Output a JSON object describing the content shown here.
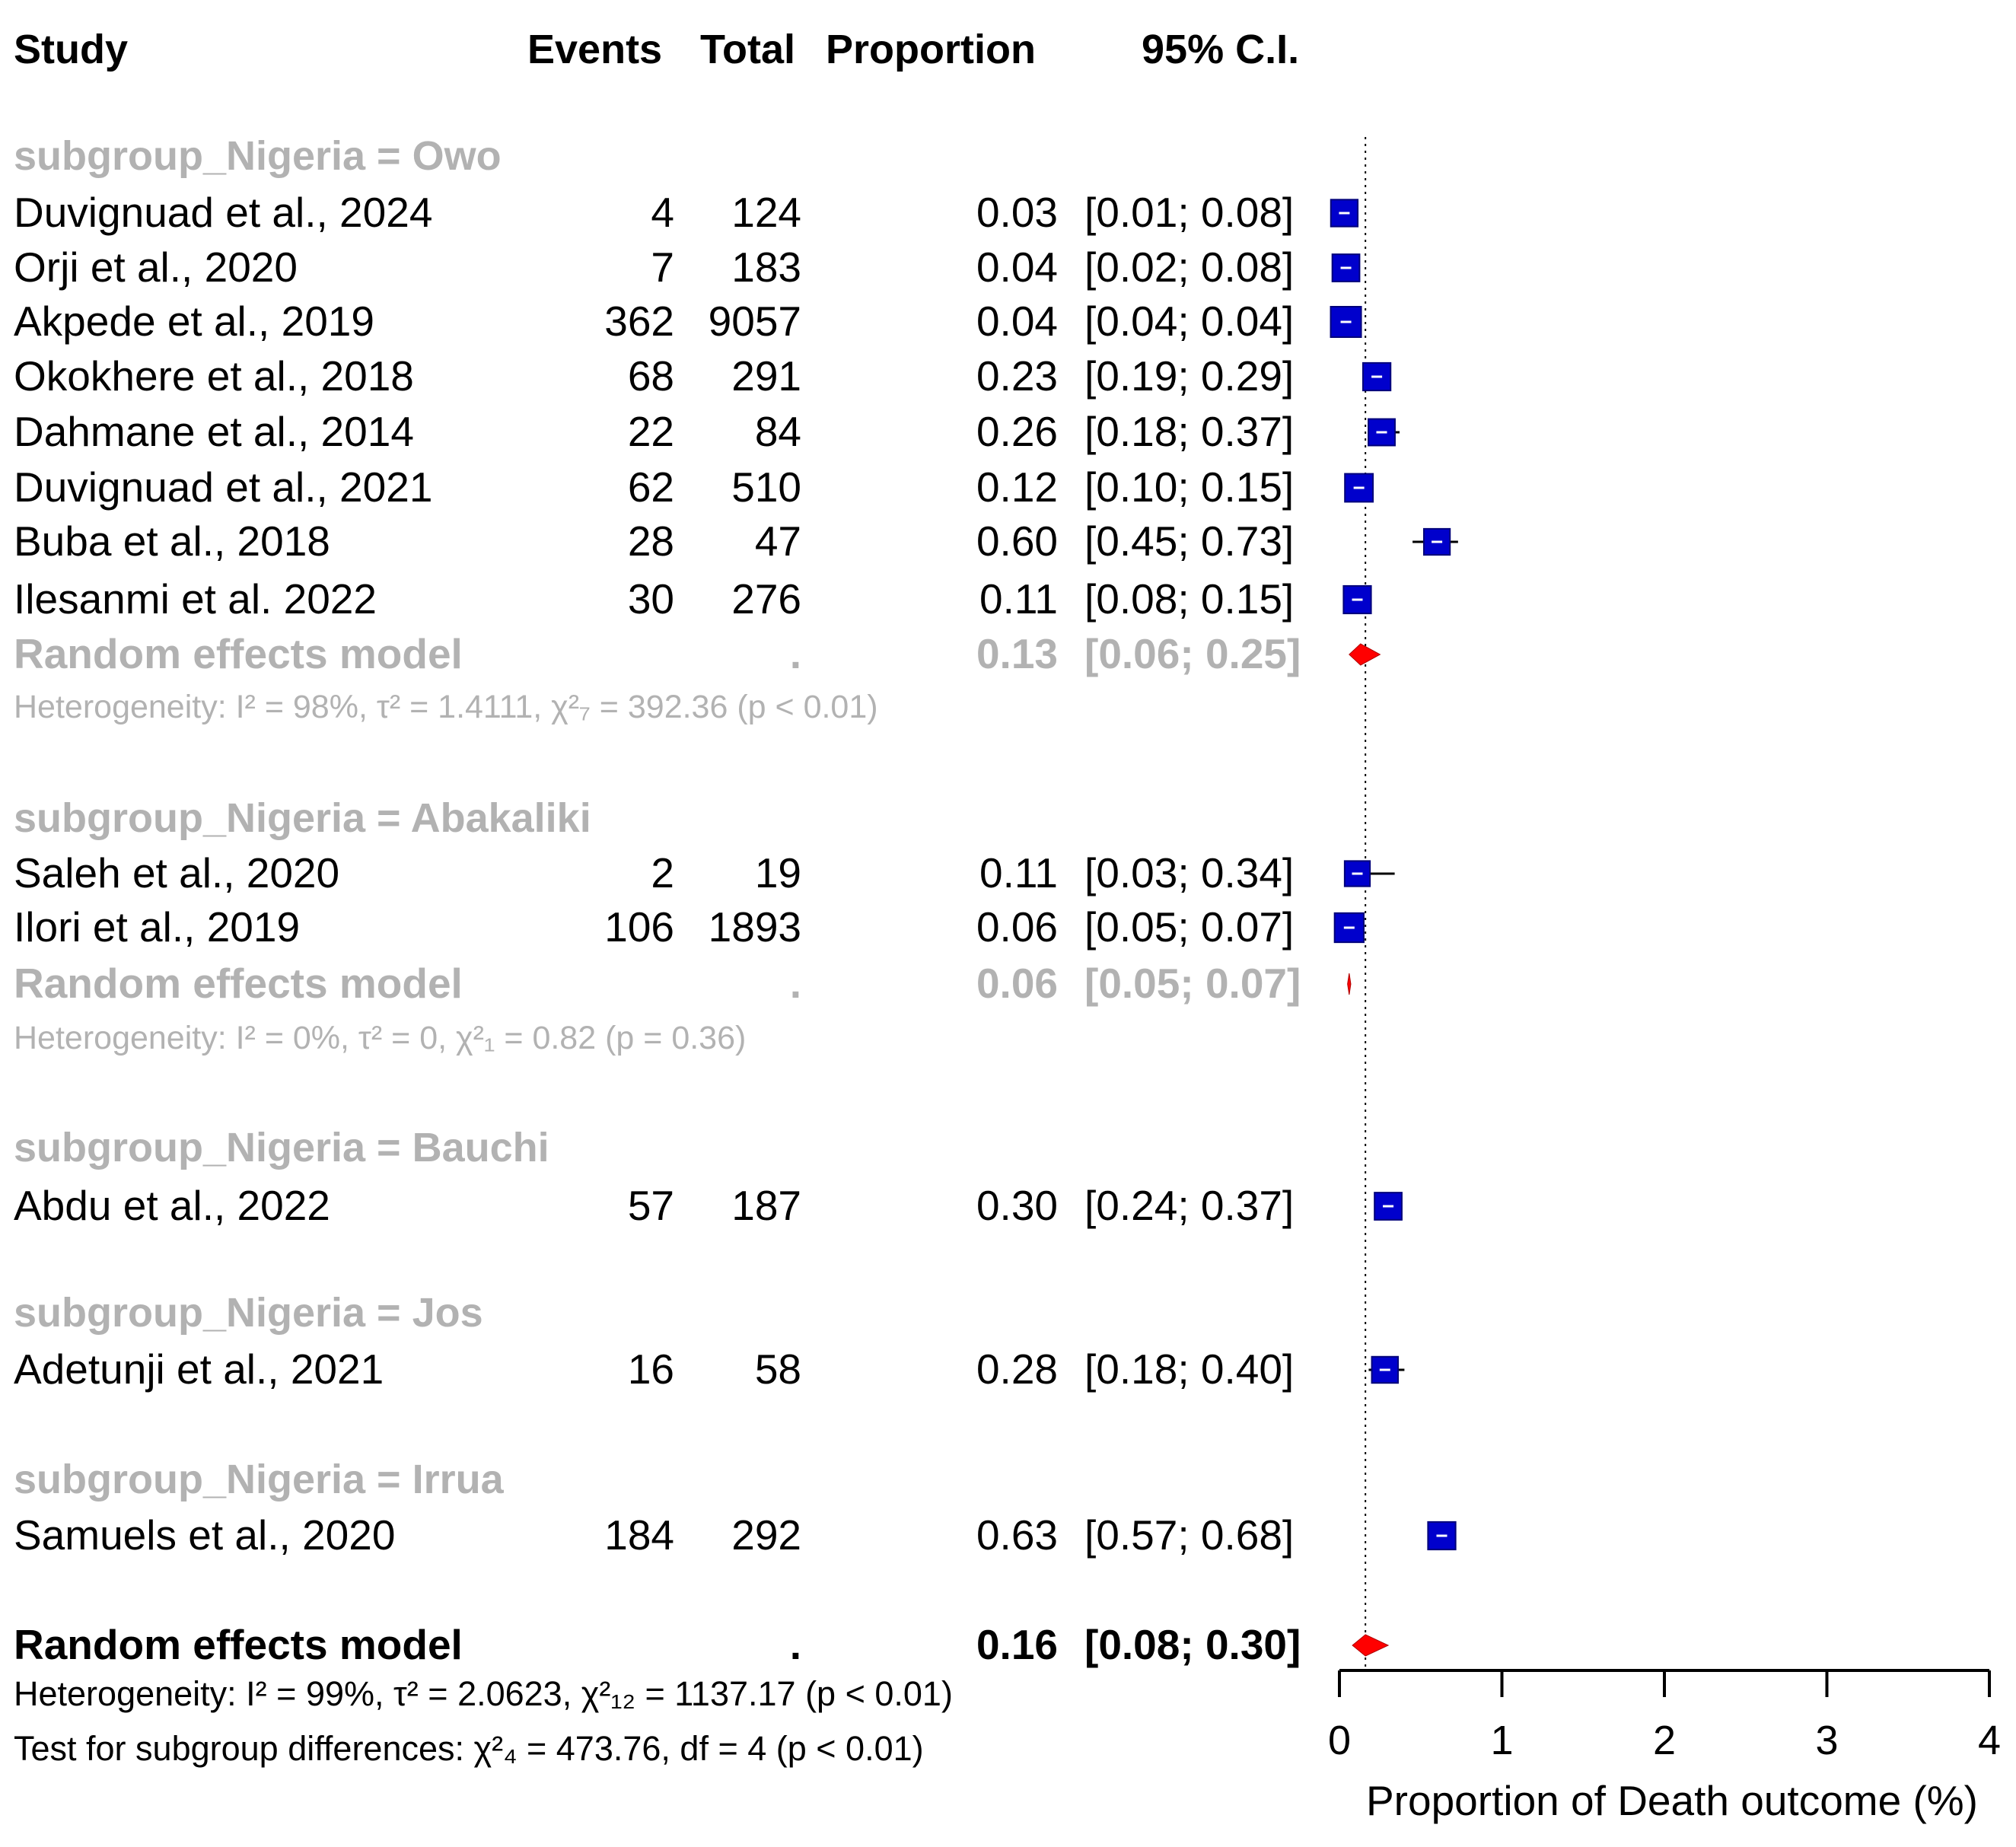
{
  "headers": {
    "study": "Study",
    "events": "Events",
    "total": "Total",
    "proportion": "Proportion",
    "ci": "95% C.I."
  },
  "groups": [
    {
      "label": "subgroup_Nigeria = Owo",
      "studies": [
        {
          "study": "Duvignuad et al., 2024",
          "events": "4",
          "total": "124",
          "proportion": "0.03",
          "ci": "[0.01; 0.08]",
          "est": 0.03,
          "lo": 0.01,
          "hi": 0.08
        },
        {
          "study": "Orji et al., 2020",
          "events": "7",
          "total": "183",
          "proportion": "0.04",
          "ci": "[0.02; 0.08]",
          "est": 0.04,
          "lo": 0.02,
          "hi": 0.08
        },
        {
          "study": "Akpede et al., 2019",
          "events": "362",
          "total": "9057",
          "proportion": "0.04",
          "ci": "[0.04; 0.04]",
          "est": 0.04,
          "lo": 0.04,
          "hi": 0.04
        },
        {
          "study": "Okokhere et al., 2018",
          "events": "68",
          "total": "291",
          "proportion": "0.23",
          "ci": "[0.19; 0.29]",
          "est": 0.23,
          "lo": 0.19,
          "hi": 0.29
        },
        {
          "study": "Dahmane et al., 2014",
          "events": "22",
          "total": "84",
          "proportion": "0.26",
          "ci": "[0.18; 0.37]",
          "est": 0.26,
          "lo": 0.18,
          "hi": 0.37
        },
        {
          "study": "Duvignuad et al., 2021",
          "events": "62",
          "total": "510",
          "proportion": "0.12",
          "ci": "[0.10; 0.15]",
          "est": 0.12,
          "lo": 0.1,
          "hi": 0.15
        },
        {
          "study": "Buba et al., 2018",
          "events": "28",
          "total": "47",
          "proportion": "0.60",
          "ci": "[0.45; 0.73]",
          "est": 0.6,
          "lo": 0.45,
          "hi": 0.73
        },
        {
          "study": "Ilesanmi et al. 2022",
          "events": "30",
          "total": "276",
          "proportion": "0.11",
          "ci": "[0.08; 0.15]",
          "est": 0.11,
          "lo": 0.08,
          "hi": 0.15
        }
      ],
      "re": {
        "label": "Random effects model",
        "dot": ".",
        "proportion": "0.13",
        "ci": "[0.06; 0.25]",
        "est": 0.13,
        "lo": 0.06,
        "hi": 0.25
      },
      "het": "Heterogeneity: I² = 98%, τ² = 1.4111, χ²₇ = 392.36 (p < 0.01)"
    },
    {
      "label": "subgroup_Nigeria = Abakaliki",
      "studies": [
        {
          "study": "Saleh et al., 2020",
          "events": "2",
          "total": "19",
          "proportion": "0.11",
          "ci": "[0.03; 0.34]",
          "est": 0.11,
          "lo": 0.03,
          "hi": 0.34
        },
        {
          "study": "Ilori et al., 2019",
          "events": "106",
          "total": "1893",
          "proportion": "0.06",
          "ci": "[0.05; 0.07]",
          "est": 0.06,
          "lo": 0.05,
          "hi": 0.07
        }
      ],
      "re": {
        "label": "Random effects model",
        "dot": ".",
        "proportion": "0.06",
        "ci": "[0.05; 0.07]",
        "est": 0.06,
        "lo": 0.05,
        "hi": 0.07
      },
      "het": "Heterogeneity: I² = 0%, τ² = 0, χ²₁ = 0.82 (p = 0.36)"
    },
    {
      "label": "subgroup_Nigeria = Bauchi",
      "studies": [
        {
          "study": "Abdu et al., 2022",
          "events": "57",
          "total": "187",
          "proportion": "0.30",
          "ci": "[0.24; 0.37]",
          "est": 0.3,
          "lo": 0.24,
          "hi": 0.37
        }
      ]
    },
    {
      "label": "subgroup_Nigeria = Jos",
      "studies": [
        {
          "study": "Adetunji et al., 2021",
          "events": "16",
          "total": "58",
          "proportion": "0.28",
          "ci": "[0.18; 0.40]",
          "est": 0.28,
          "lo": 0.18,
          "hi": 0.4
        }
      ]
    },
    {
      "label": "subgroup_Nigeria = Irrua",
      "studies": [
        {
          "study": "Samuels et al., 2020",
          "events": "184",
          "total": "292",
          "proportion": "0.63",
          "ci": "[0.57; 0.68]",
          "est": 0.63,
          "lo": 0.57,
          "hi": 0.68
        }
      ]
    }
  ],
  "overall": {
    "label": "Random effects model",
    "dot": ".",
    "proportion": "0.16",
    "ci": "[0.08; 0.30]",
    "est": 0.16,
    "lo": 0.08,
    "hi": 0.3
  },
  "overall_het": "Heterogeneity: I² = 99%, τ² = 2.0623, χ²₁₂ = 1137.17 (p < 0.01)",
  "subgroup_test": "Test for subgroup differences: χ²₄ = 473.76, df = 4 (p < 0.01)",
  "colors": {
    "study_box": "#0000cc",
    "diamond": "#ff0000",
    "grey_text": "#b2b2b2",
    "ci_line": "#000000"
  },
  "chart_data": {
    "type": "forest",
    "xlabel": "Proportion of Death outcome (%)",
    "xlim": [
      0,
      4
    ],
    "xticks": [
      0,
      1,
      2,
      3,
      4
    ],
    "reference_line": 0.16,
    "series": [
      {
        "name": "Duvignuad et al., 2024",
        "group": "Owo",
        "value": 0.03,
        "lo": 0.01,
        "hi": 0.08
      },
      {
        "name": "Orji et al., 2020",
        "group": "Owo",
        "value": 0.04,
        "lo": 0.02,
        "hi": 0.08
      },
      {
        "name": "Akpede et al., 2019",
        "group": "Owo",
        "value": 0.04,
        "lo": 0.04,
        "hi": 0.04
      },
      {
        "name": "Okokhere et al., 2018",
        "group": "Owo",
        "value": 0.23,
        "lo": 0.19,
        "hi": 0.29
      },
      {
        "name": "Dahmane et al., 2014",
        "group": "Owo",
        "value": 0.26,
        "lo": 0.18,
        "hi": 0.37
      },
      {
        "name": "Duvignuad et al., 2021",
        "group": "Owo",
        "value": 0.12,
        "lo": 0.1,
        "hi": 0.15
      },
      {
        "name": "Buba et al., 2018",
        "group": "Owo",
        "value": 0.6,
        "lo": 0.45,
        "hi": 0.73
      },
      {
        "name": "Ilesanmi et al. 2022",
        "group": "Owo",
        "value": 0.11,
        "lo": 0.08,
        "hi": 0.15
      },
      {
        "name": "Saleh et al., 2020",
        "group": "Abakaliki",
        "value": 0.11,
        "lo": 0.03,
        "hi": 0.34
      },
      {
        "name": "Ilori et al., 2019",
        "group": "Abakaliki",
        "value": 0.06,
        "lo": 0.05,
        "hi": 0.07
      },
      {
        "name": "Abdu et al., 2022",
        "group": "Bauchi",
        "value": 0.3,
        "lo": 0.24,
        "hi": 0.37
      },
      {
        "name": "Adetunji et al., 2021",
        "group": "Jos",
        "value": 0.28,
        "lo": 0.18,
        "hi": 0.4
      },
      {
        "name": "Samuels et al., 2020",
        "group": "Irrua",
        "value": 0.63,
        "lo": 0.57,
        "hi": 0.68
      }
    ]
  }
}
